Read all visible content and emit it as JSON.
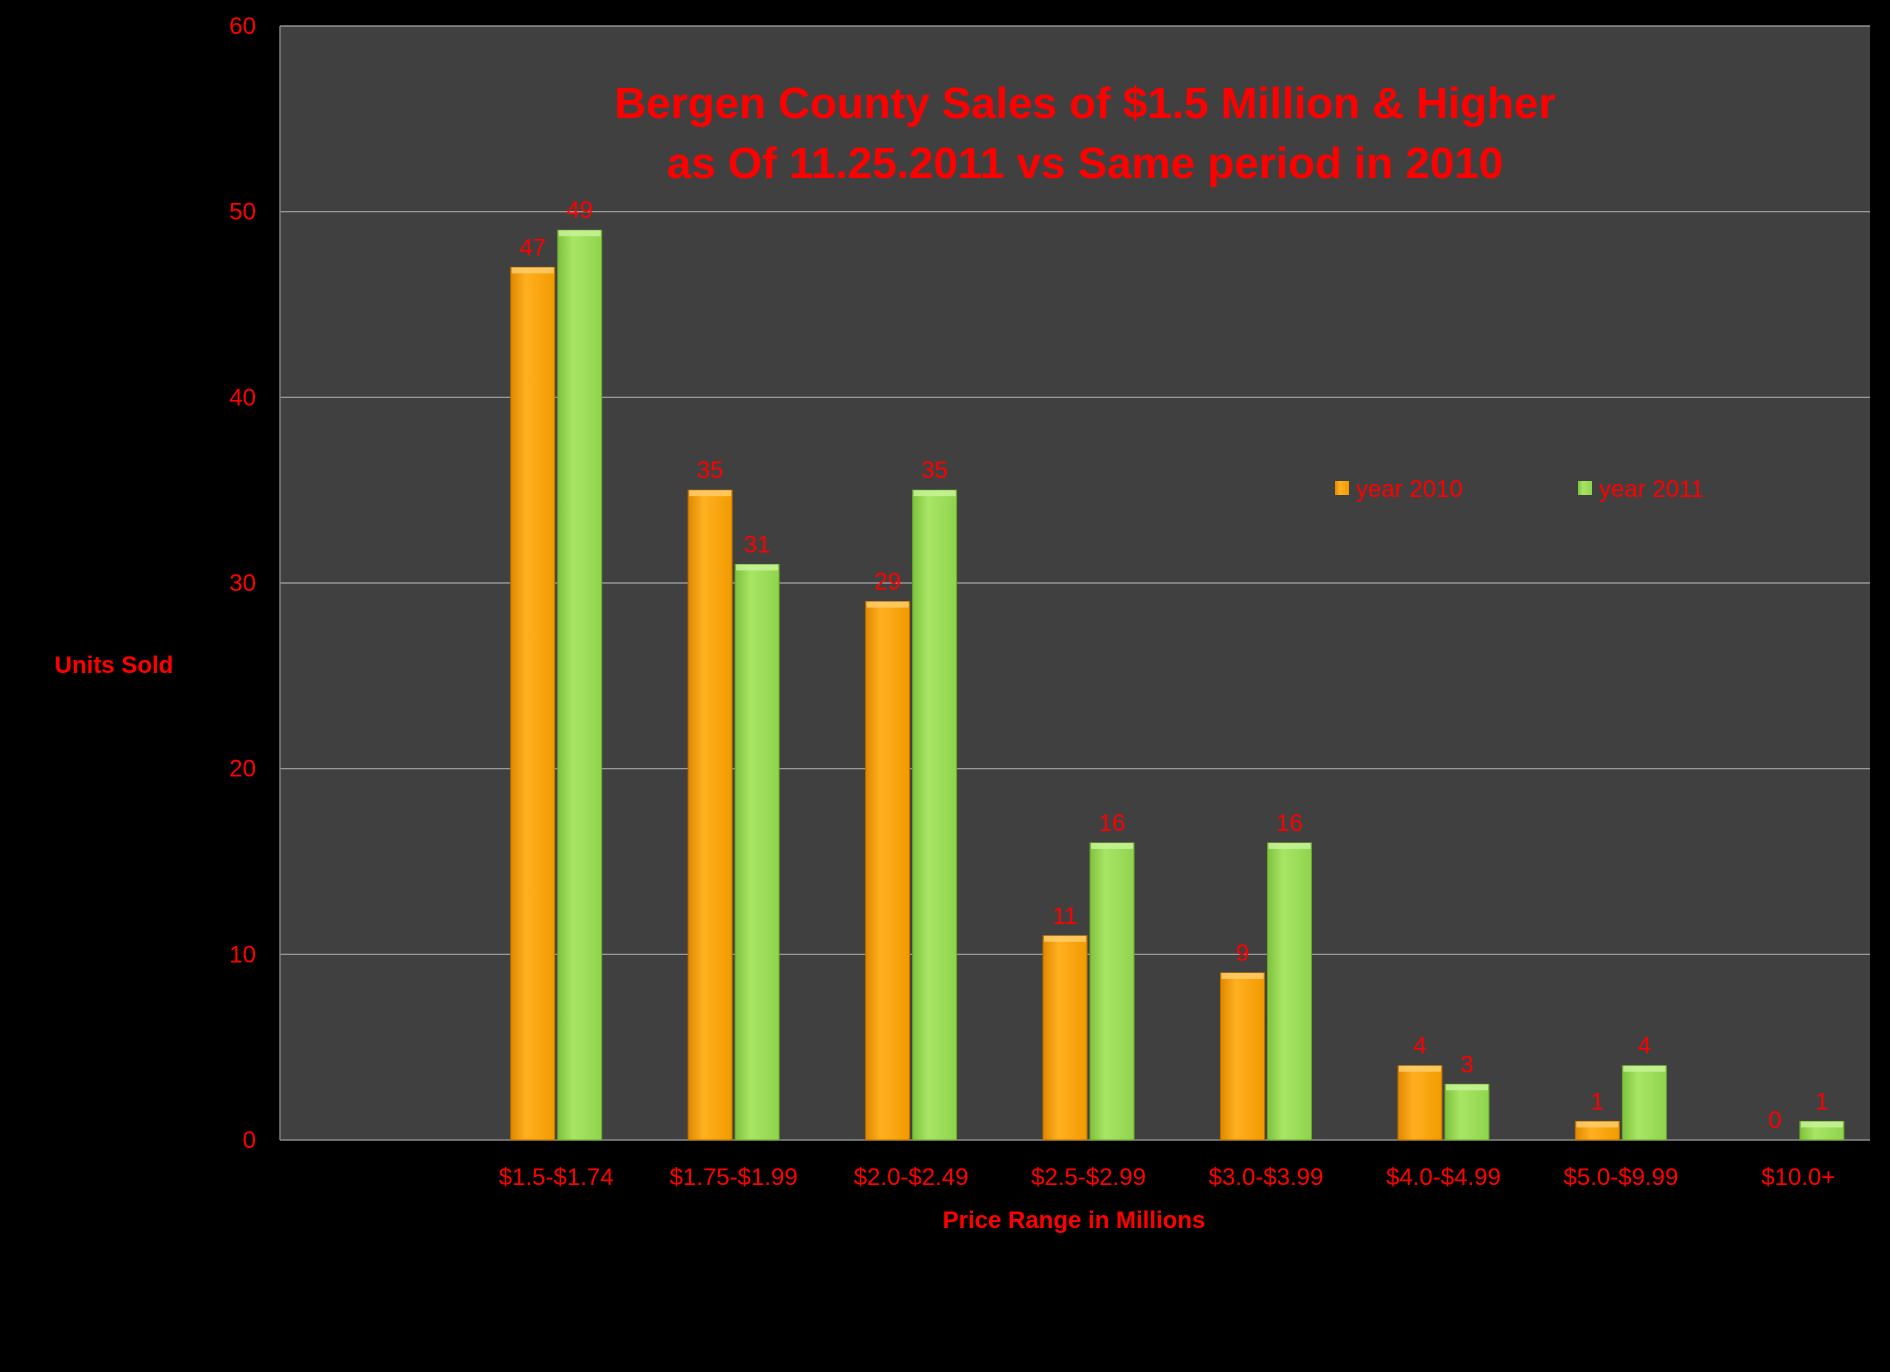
{
  "colors": {
    "background": "#000000",
    "plot_area": "#404040",
    "gridline": "#a6a6a6",
    "text": "#ff0000",
    "series_2010": "#ffa500",
    "series_2011": "#99dd55"
  },
  "chart_data": {
    "type": "bar",
    "title": [
      "Bergen County  Sales of $1.5 Million & Higher",
      "as Of 11.25.2011 vs Same period  in 2010"
    ],
    "xlabel": "Price Range  in Millions",
    "ylabel": "Units  Sold",
    "ylim": [
      0,
      60
    ],
    "yticks": [
      0,
      10,
      20,
      30,
      40,
      50,
      60
    ],
    "grid": true,
    "legend_position": "upper-right inside plot",
    "categories": [
      "",
      "$1.5-$1.74",
      "$1.75-$1.99",
      "$2.0-$2.49",
      "$2.5-$2.99",
      "$3.0-$3.99",
      "$4.0-$4.99",
      "$5.0-$9.99",
      "$10.0+"
    ],
    "series": [
      {
        "name": "year 2010",
        "color": "#ffa500",
        "values": [
          null,
          47,
          35,
          29,
          11,
          9,
          4,
          1,
          0
        ]
      },
      {
        "name": "year 2011",
        "color": "#99dd55",
        "values": [
          null,
          49,
          31,
          35,
          16,
          16,
          3,
          4,
          1
        ]
      }
    ]
  }
}
